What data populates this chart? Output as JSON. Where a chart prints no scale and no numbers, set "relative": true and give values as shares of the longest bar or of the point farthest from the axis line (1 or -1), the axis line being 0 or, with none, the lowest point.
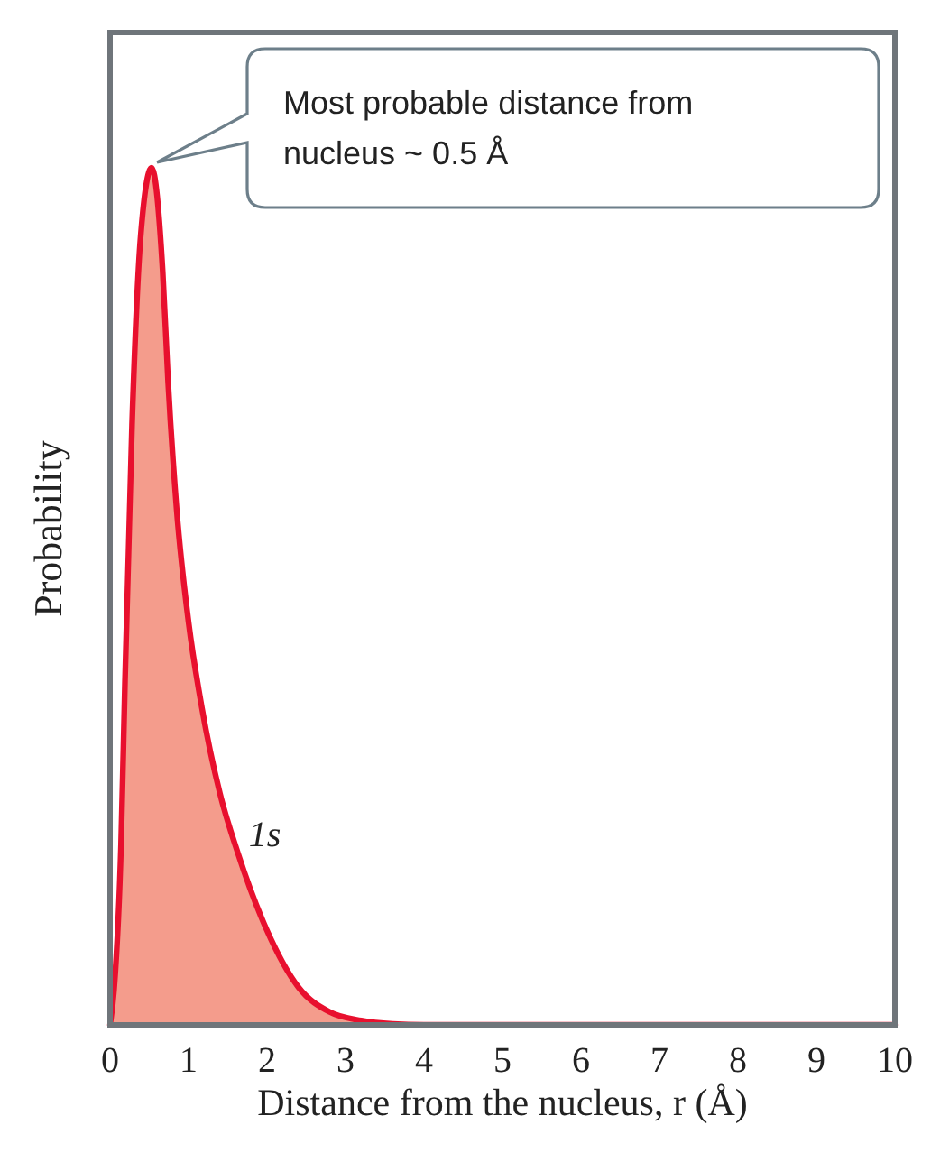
{
  "chart_data": {
    "type": "area",
    "relative": true,
    "xlabel": "Distance from the nucleus, r (Å)",
    "ylabel": "Probability",
    "xlim": [
      0,
      10
    ],
    "xticks": [
      0,
      1,
      2,
      3,
      4,
      5,
      6,
      7,
      8,
      9,
      10
    ],
    "grid": false,
    "legend": false,
    "x": [
      0,
      0.05,
      0.14,
      0.19,
      0.28,
      0.39,
      0.53,
      0.67,
      0.74,
      0.85,
      1.0,
      1.17,
      1.4,
      1.63,
      2.0,
      2.4,
      2.8,
      3.2,
      3.6,
      4,
      5,
      6,
      7,
      8,
      9,
      10
    ],
    "series": [
      {
        "name": "1s",
        "color": "#e8102e",
        "values": [
          0,
          0.04,
          0.21,
          0.4,
          0.7,
          0.92,
          1,
          0.88,
          0.75,
          0.6,
          0.47,
          0.37,
          0.27,
          0.2,
          0.11,
          0.044,
          0.015,
          0.005,
          0.001,
          0,
          0,
          0,
          0,
          0,
          0,
          0
        ]
      }
    ],
    "annotations": [
      "Most probable distance from nucleus ~ 0.5 Å"
    ]
  }
}
